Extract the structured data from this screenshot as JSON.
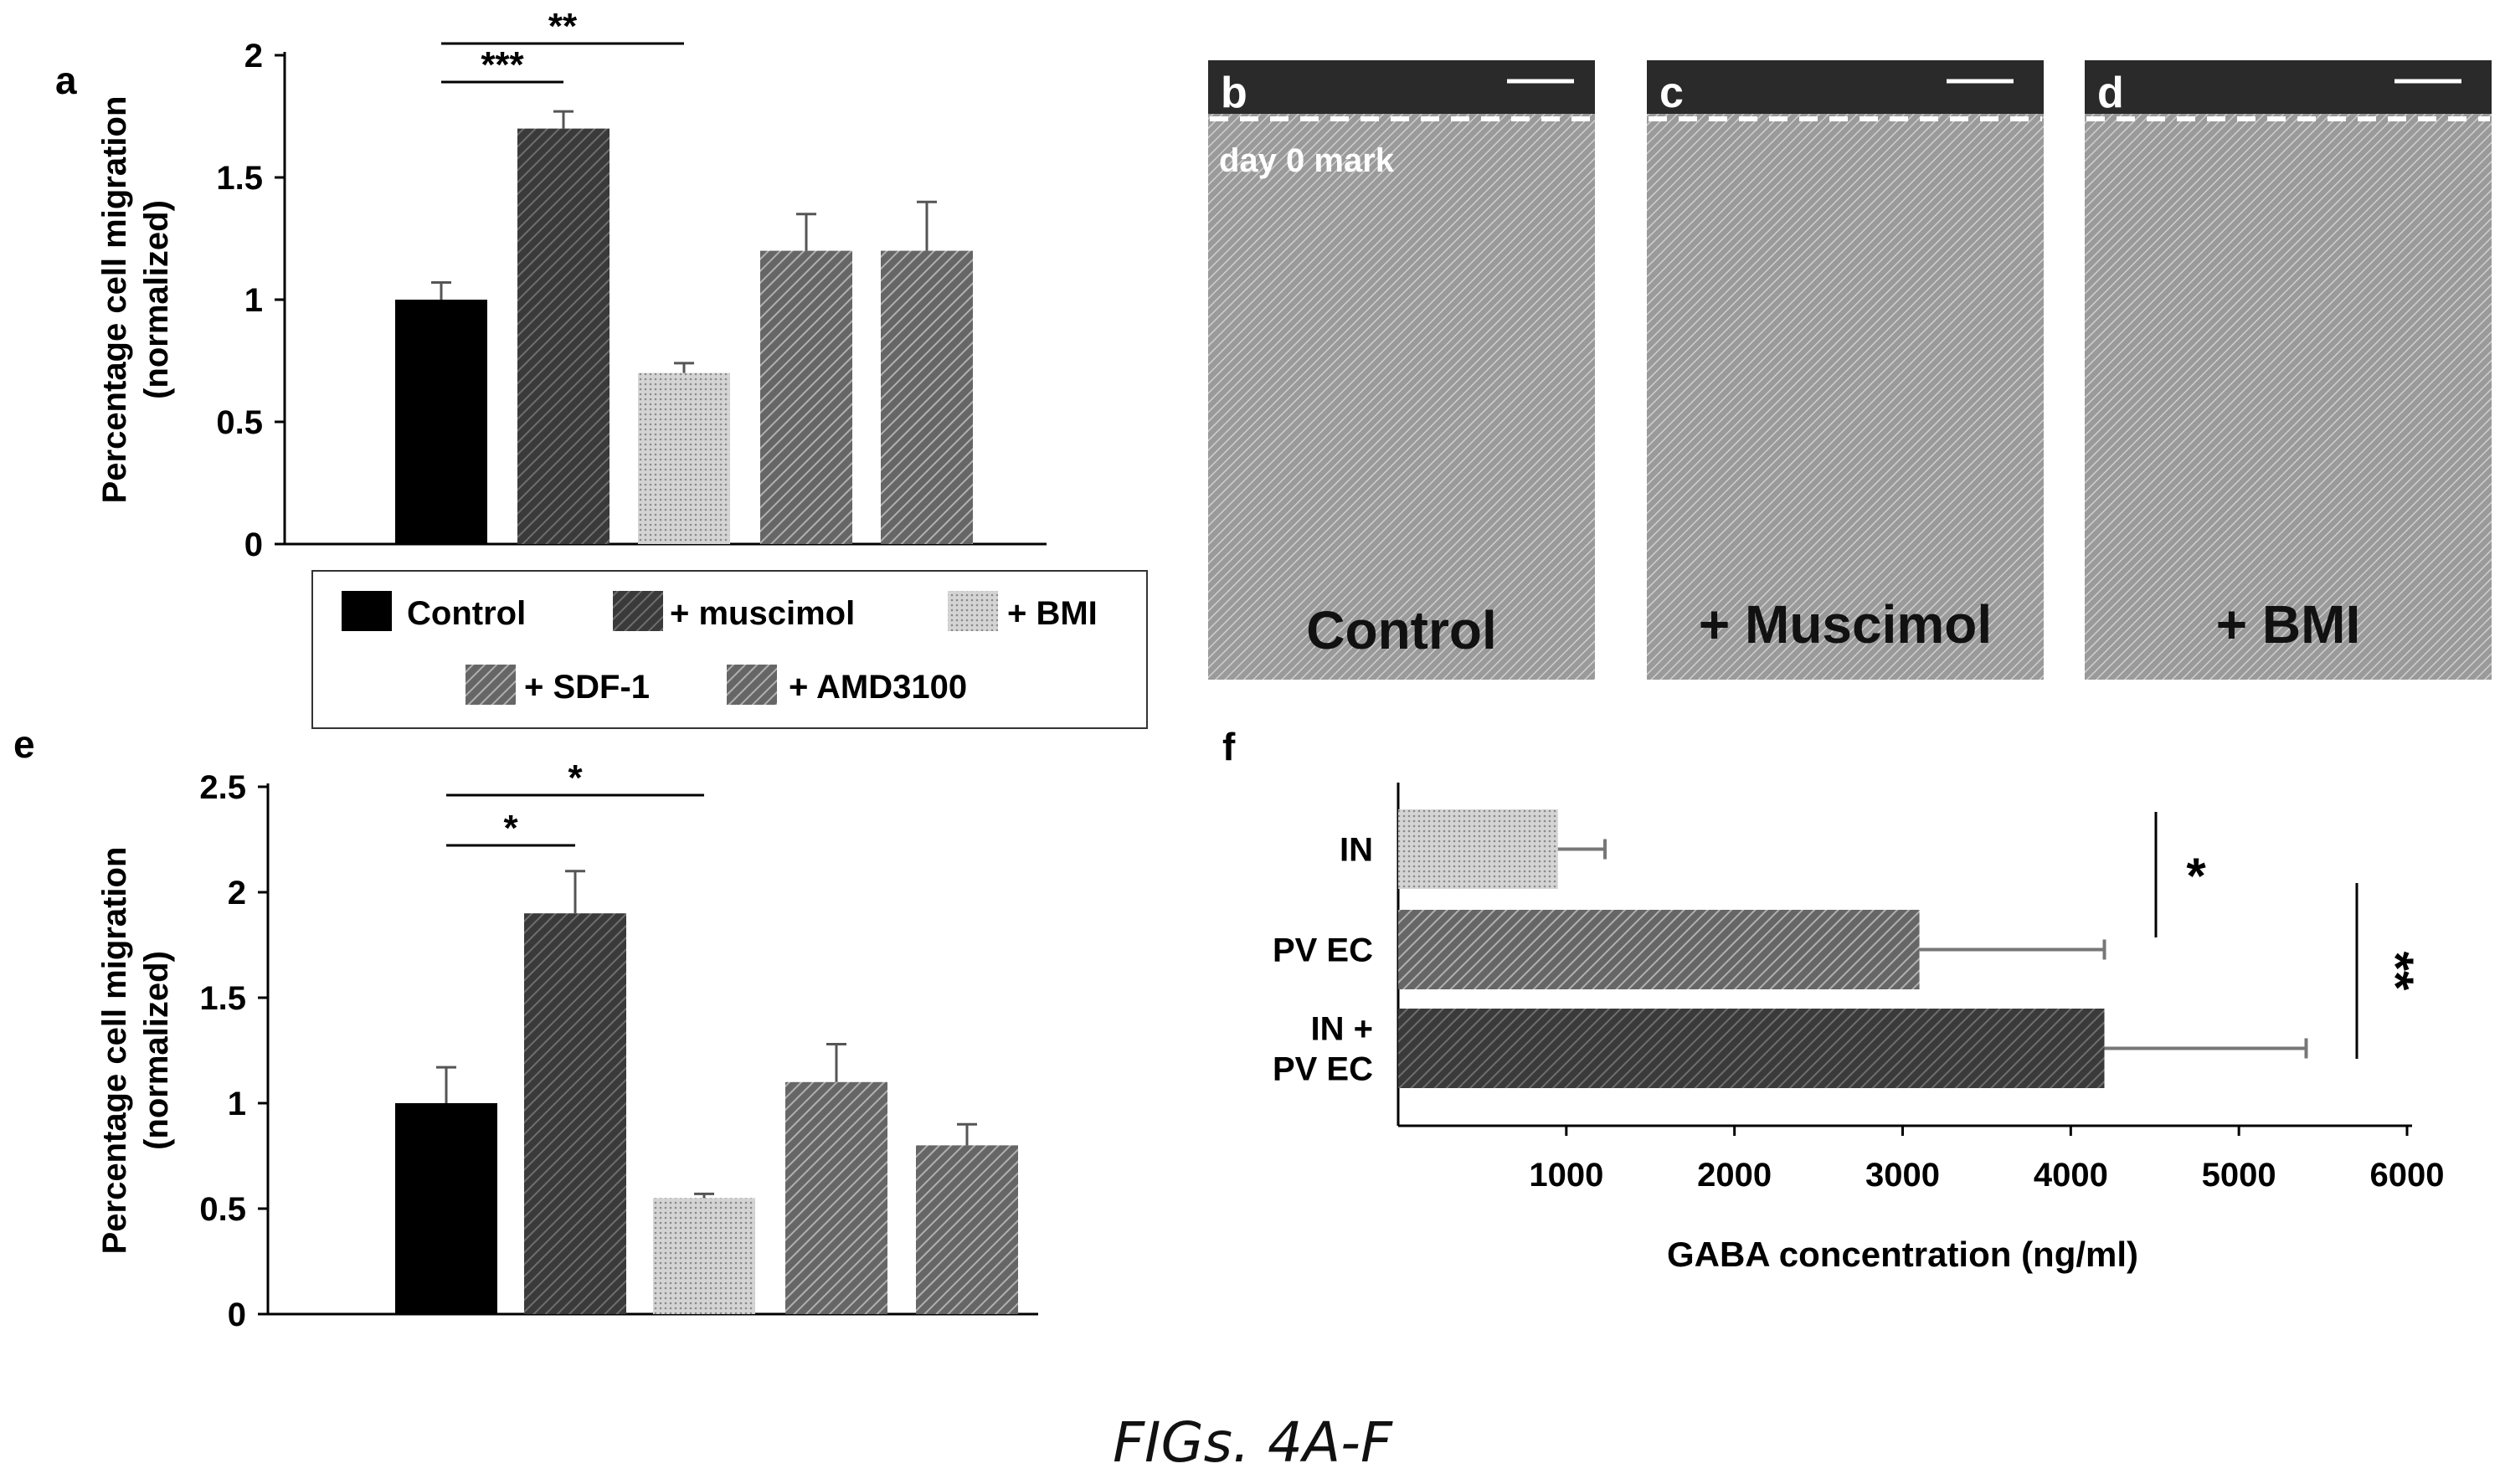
{
  "figure_caption": "FIGs. 4A-F",
  "legend": {
    "items": [
      {
        "label": "Control",
        "pattern": "pat-black"
      },
      {
        "label": "+ muscimol",
        "pattern": "pat-dark"
      },
      {
        "label": "+ BMI",
        "pattern": "pat-light"
      },
      {
        "label": "+ SDF-1",
        "pattern": "pat-mid"
      },
      {
        "label": "+ AMD3100",
        "pattern": "pat-mid"
      }
    ]
  },
  "micrographs": [
    {
      "letter": "b",
      "condition": "Control",
      "mark": "day 0 mark"
    },
    {
      "letter": "c",
      "condition": "+ Muscimol",
      "mark": ""
    },
    {
      "letter": "d",
      "condition": "+ BMI",
      "mark": ""
    }
  ],
  "chart_data": [
    {
      "panel": "a",
      "type": "bar",
      "categories": [
        "Control",
        "+ muscimol",
        "+ BMI",
        "+ SDF-1",
        "+ AMD3100"
      ],
      "values": [
        1.0,
        1.7,
        0.7,
        1.2,
        1.2
      ],
      "errors": [
        0.07,
        0.07,
        0.04,
        0.15,
        0.2
      ],
      "ylabel": [
        "Percentage cell migration",
        "(normalized)"
      ],
      "ylim": [
        0,
        2
      ],
      "yticks": [
        0,
        0.5,
        1,
        1.5,
        2
      ],
      "ytick_labels": [
        "0",
        "0.5",
        "1",
        "1.5",
        "2"
      ],
      "significance": [
        {
          "from": 0,
          "to": 2,
          "label": "**"
        },
        {
          "from": 0,
          "to": 1,
          "label": "***"
        }
      ]
    },
    {
      "panel": "e",
      "type": "bar",
      "categories": [
        "Control",
        "+ muscimol",
        "+ BMI",
        "+ SDF-1",
        "+ AMD3100"
      ],
      "values": [
        1.0,
        1.9,
        0.55,
        1.1,
        0.8
      ],
      "errors": [
        0.17,
        0.2,
        0.02,
        0.18,
        0.1
      ],
      "ylabel": [
        "Percentage cell migration",
        "(normalized)"
      ],
      "ylim": [
        0,
        2.5
      ],
      "yticks": [
        0,
        0.5,
        1,
        1.5,
        2,
        2.5
      ],
      "ytick_labels": [
        "0",
        "0.5",
        "1",
        "1.5",
        "2",
        "2.5"
      ],
      "significance": [
        {
          "from": 0,
          "to": 2,
          "label": "*"
        },
        {
          "from": 0,
          "to": 1,
          "label": "*"
        }
      ]
    },
    {
      "panel": "f",
      "type": "bar",
      "orientation": "horizontal",
      "categories": [
        [
          "IN"
        ],
        [
          "PV EC"
        ],
        [
          "IN +",
          "PV EC"
        ]
      ],
      "values": [
        950,
        3100,
        4200
      ],
      "errors": [
        280,
        1100,
        1200
      ],
      "xlabel": "GABA concentration (ng/ml)",
      "xlim": [
        0,
        6000
      ],
      "xticks": [
        1000,
        2000,
        3000,
        4000,
        5000,
        6000
      ],
      "xtick_labels": [
        "1000",
        "2000",
        "3000",
        "4000",
        "5000",
        "6000"
      ],
      "significance": [
        {
          "from": 0,
          "to": 1,
          "label": "*"
        },
        {
          "from": 1,
          "to": 2,
          "label": "**"
        }
      ]
    }
  ]
}
